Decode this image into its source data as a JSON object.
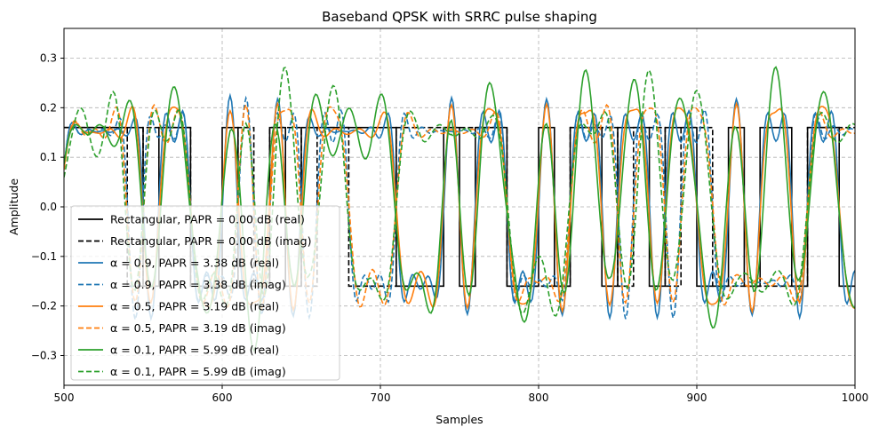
{
  "chart_data": {
    "type": "line",
    "title": "Baseband QPSK with SRRC pulse shaping",
    "xlabel": "Samples",
    "ylabel": "Amplitude",
    "xlim": [
      500,
      1000
    ],
    "ylim": [
      -0.36,
      0.36
    ],
    "xticks": [
      500,
      600,
      700,
      800,
      900,
      1000
    ],
    "yticks": [
      -0.3,
      -0.2,
      -0.1,
      0.0,
      0.1,
      0.2,
      0.3
    ],
    "xtick_labels": [
      "500",
      "600",
      "700",
      "800",
      "900",
      "1000"
    ],
    "ytick_labels": [
      "−0.3",
      "−0.2",
      "−0.1",
      "0.0",
      "0.1",
      "0.2",
      "0.3"
    ],
    "grid": true,
    "legend_position": "lower-left",
    "symbol_levels": {
      "real": [
        1,
        1,
        1,
        1,
        1,
        -1,
        1,
        1,
        -1,
        -1,
        1,
        -1,
        -1,
        1,
        -1,
        1,
        1,
        1,
        1,
        1,
        1,
        -1,
        -1,
        -1,
        1,
        -1,
        1,
        1,
        -1,
        -1,
        1,
        -1,
        1,
        1,
        -1,
        1,
        1,
        -1,
        1,
        1,
        -1,
        -1,
        1,
        -1,
        1,
        1,
        -1,
        1,
        1,
        -1,
        -1,
        1,
        1,
        -1,
        1,
        1,
        -1,
        1,
        -1,
        1
      ],
      "imag": [
        1,
        1,
        1,
        1,
        -1,
        1,
        1,
        1,
        -1,
        -1,
        -1,
        1,
        -1,
        1,
        1,
        -1,
        1,
        1,
        -1,
        -1,
        -1,
        1,
        1,
        1,
        1,
        1,
        1,
        1,
        -1,
        -1,
        -1,
        -1,
        1,
        1,
        1,
        -1,
        1,
        1,
        -1,
        1,
        1,
        -1,
        -1,
        -1,
        -1,
        -1,
        -1,
        1,
        1,
        1,
        1,
        1,
        1,
        1,
        1,
        1,
        1,
        1,
        -1,
        1
      ]
    },
    "samples_per_symbol": 10,
    "series": [
      {
        "name": "Rectangular, PAPR = 0.00 dB (real)",
        "color": "#000000",
        "dash": "solid",
        "pulse": "rect",
        "component": "real",
        "values": [
          0.16,
          0.16,
          0.16,
          0.16,
          0.16,
          -0.16,
          0.16,
          0.16,
          -0.16,
          -0.16,
          0.16,
          -0.16,
          -0.16,
          0.16,
          -0.16,
          0.16,
          0.16,
          0.16,
          0.16,
          0.16,
          0.16,
          -0.16,
          -0.16,
          -0.16,
          0.16,
          -0.16,
          0.16,
          0.16,
          -0.16,
          -0.16,
          0.16,
          -0.16,
          0.16,
          0.16,
          -0.16,
          0.16,
          0.16,
          -0.16,
          0.16,
          0.16,
          -0.16,
          -0.16,
          0.16,
          -0.16,
          0.16,
          0.16,
          -0.16,
          0.16,
          0.16,
          -0.16,
          -0.16
        ]
      },
      {
        "name": "Rectangular, PAPR = 0.00 dB (imag)",
        "color": "#000000",
        "dash": "dashed",
        "pulse": "rect",
        "component": "imag",
        "values": [
          0.16,
          0.16,
          0.16,
          0.16,
          -0.16,
          0.16,
          0.16,
          0.16,
          -0.16,
          -0.16,
          -0.16,
          0.16,
          -0.16,
          0.16,
          0.16,
          -0.16,
          0.16,
          0.16,
          -0.16,
          -0.16,
          -0.16,
          0.16,
          0.16,
          0.16,
          0.16,
          0.16,
          0.16,
          0.16,
          -0.16,
          -0.16,
          -0.16,
          -0.16,
          0.16,
          0.16,
          0.16,
          -0.16,
          0.16,
          0.16,
          -0.16,
          0.16,
          0.16,
          -0.16,
          -0.16,
          -0.16,
          -0.16,
          -0.16,
          -0.16,
          0.16,
          0.16,
          0.16,
          0.16
        ]
      },
      {
        "name": "α = 0.9, PAPR = 3.38 dB (real)",
        "color": "#1f77b4",
        "dash": "solid",
        "pulse": "srrc",
        "alpha": 0.9,
        "component": "real",
        "scale": 0.16
      },
      {
        "name": "α = 0.9, PAPR = 3.38 dB (imag)",
        "color": "#1f77b4",
        "dash": "dashed",
        "pulse": "srrc",
        "alpha": 0.9,
        "component": "imag",
        "scale": 0.16
      },
      {
        "name": "α = 0.5, PAPR = 3.19 dB (real)",
        "color": "#ff7f0e",
        "dash": "solid",
        "pulse": "srrc",
        "alpha": 0.5,
        "component": "real",
        "scale": 0.16
      },
      {
        "name": "α = 0.5, PAPR = 3.19 dB (imag)",
        "color": "#ff7f0e",
        "dash": "dashed",
        "pulse": "srrc",
        "alpha": 0.5,
        "component": "imag",
        "scale": 0.16
      },
      {
        "name": "α = 0.1, PAPR = 5.99 dB (real)",
        "color": "#2ca02c",
        "dash": "solid",
        "pulse": "srrc",
        "alpha": 0.1,
        "component": "real",
        "scale": 0.16
      },
      {
        "name": "α = 0.1, PAPR = 5.99 dB (imag)",
        "color": "#2ca02c",
        "dash": "dashed",
        "pulse": "srrc",
        "alpha": 0.1,
        "component": "imag",
        "scale": 0.16
      }
    ]
  }
}
